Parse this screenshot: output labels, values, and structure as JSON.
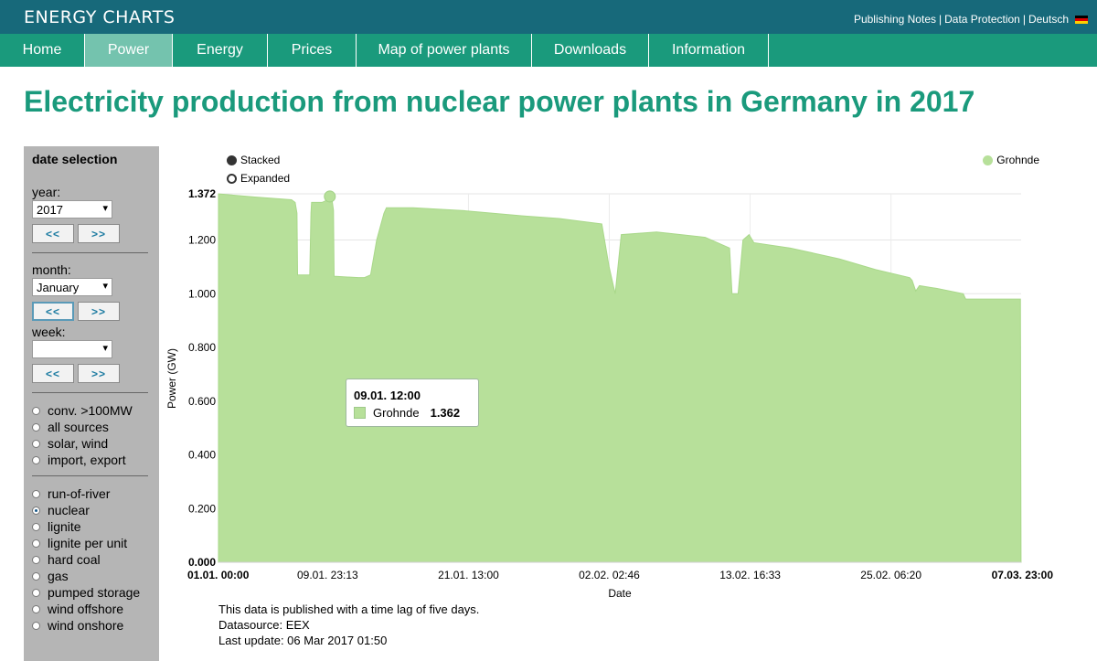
{
  "header": {
    "brand": "ENERGY CHARTS",
    "links": [
      "Publishing Notes",
      "Data Protection",
      "Deutsch"
    ],
    "separator": "|"
  },
  "nav": {
    "tabs": [
      {
        "label": "Home",
        "active": false
      },
      {
        "label": "Power",
        "active": true
      },
      {
        "label": "Energy",
        "active": false
      },
      {
        "label": "Prices",
        "active": false
      },
      {
        "label": "Map of power plants",
        "active": false
      },
      {
        "label": "Downloads",
        "active": false
      },
      {
        "label": "Information",
        "active": false
      }
    ]
  },
  "page": {
    "title": "Electricity production from nuclear power plants in Germany in 2017"
  },
  "sidebar": {
    "heading": "date selection",
    "year_label": "year:",
    "year_value": "2017",
    "month_label": "month:",
    "month_value": "January",
    "week_label": "week:",
    "week_value": "",
    "prev_label": "<<",
    "next_label": ">>",
    "group1": [
      {
        "label": "conv. >100MW",
        "checked": false
      },
      {
        "label": "all sources",
        "checked": false
      },
      {
        "label": "solar, wind",
        "checked": false
      },
      {
        "label": "import, export",
        "checked": false
      }
    ],
    "group2": [
      {
        "label": "run-of-river",
        "checked": false
      },
      {
        "label": "nuclear",
        "checked": true
      },
      {
        "label": "lignite",
        "checked": false
      },
      {
        "label": "lignite per unit",
        "checked": false
      },
      {
        "label": "hard coal",
        "checked": false
      },
      {
        "label": "gas",
        "checked": false
      },
      {
        "label": "pumped storage",
        "checked": false
      },
      {
        "label": "wind offshore",
        "checked": false
      },
      {
        "label": "wind onshore",
        "checked": false
      }
    ]
  },
  "chart_options": {
    "stacked": "Stacked",
    "expanded": "Expanded",
    "stacked_selected": true
  },
  "tooltip": {
    "date": "09.01. 12:00",
    "series": "Grohnde",
    "value": "1.362"
  },
  "colors": {
    "area_fill": "#b7e09a",
    "area_stroke": "#a9d88a",
    "accent": "#1a9a7c",
    "topbar": "#17697a"
  },
  "chart_data": {
    "type": "area",
    "title": "",
    "xlabel": "Date",
    "ylabel": "Power (GW)",
    "ylim": [
      0,
      1.372
    ],
    "xlim": [
      0,
      65.958
    ],
    "x_unit": "days since 01.01. 00:00",
    "y_ticks": [
      "0.000",
      "0.200",
      "0.400",
      "0.600",
      "0.800",
      "1.000",
      "1.200",
      "1.372"
    ],
    "y_tick_values": [
      0,
      0.2,
      0.4,
      0.6,
      0.8,
      1.0,
      1.2,
      1.372
    ],
    "x_ticks": [
      "01.01. 00:00",
      "09.01. 23:13",
      "21.01. 13:00",
      "02.02. 02:46",
      "13.02. 16:33",
      "25.02. 06:20",
      "07.03. 23:00"
    ],
    "x_tick_values": [
      0,
      8.967,
      20.542,
      32.115,
      43.69,
      55.264,
      65.958
    ],
    "x_tick_bold": [
      true,
      false,
      false,
      false,
      false,
      false,
      true
    ],
    "grid": true,
    "legend": "top-right",
    "series": [
      {
        "name": "Grohnde",
        "x": [
          0,
          0.5,
          3,
          6,
          6.3,
          6.45,
          6.5,
          7.5,
          7.6,
          7.65,
          8.5,
          9.0,
          9.15,
          9.3,
          9.45,
          9.5,
          11.5,
          12.0,
          12.5,
          13.0,
          13.6,
          13.8,
          16,
          20,
          25,
          28,
          31.5,
          32.1,
          32.6,
          33.1,
          36,
          40,
          42.0,
          42.2,
          42.7,
          43.1,
          43.6,
          44.0,
          47,
          51,
          54,
          56.8,
          57.0,
          57.3,
          57.6,
          59,
          61.2,
          61.4,
          65.9,
          65.95
        ],
        "values": [
          1.372,
          1.37,
          1.36,
          1.35,
          1.34,
          1.3,
          1.07,
          1.07,
          1.3,
          1.34,
          1.34,
          1.35,
          1.362,
          1.36,
          1.31,
          1.065,
          1.06,
          1.06,
          1.07,
          1.2,
          1.3,
          1.32,
          1.32,
          1.31,
          1.29,
          1.28,
          1.26,
          1.1,
          1.0,
          1.22,
          1.23,
          1.21,
          1.17,
          1.0,
          1.0,
          1.2,
          1.22,
          1.19,
          1.17,
          1.13,
          1.09,
          1.06,
          1.05,
          1.01,
          1.03,
          1.02,
          1.0,
          0.98,
          0.98,
          0
        ]
      }
    ],
    "marker": {
      "x": 9.15,
      "y": 1.362
    }
  },
  "footer": {
    "lines": [
      "This data is published with a time lag of five days.",
      "Datasource: EEX",
      "Last update: 06 Mar 2017 01:50"
    ]
  }
}
